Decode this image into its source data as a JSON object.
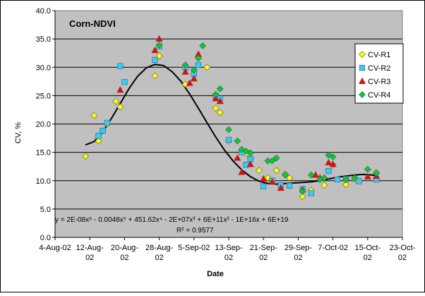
{
  "chart_data": {
    "type": "scatter",
    "title": "Corn-NDVI",
    "xlabel": "Date",
    "ylabel": "CV, %",
    "x_axis": {
      "type": "date",
      "min": "2002-08-04",
      "max": "2002-10-23",
      "tick_labels": [
        [
          "4-Aug-02"
        ],
        [
          "12-Aug-",
          "02"
        ],
        [
          "20-Aug-",
          "02"
        ],
        [
          "28-Aug-",
          "02"
        ],
        [
          "5-Sep-02"
        ],
        [
          "13-Sep-",
          "02"
        ],
        [
          "21-Sep-",
          "02"
        ],
        [
          "29-Sep-",
          "02"
        ],
        [
          "7-Oct-02"
        ],
        [
          "15-Oct-",
          "02"
        ],
        [
          "23-Oct-",
          "02"
        ]
      ],
      "tick_dates": [
        "2002-08-04",
        "2002-08-12",
        "2002-08-20",
        "2002-08-28",
        "2002-09-05",
        "2002-09-13",
        "2002-09-21",
        "2002-09-29",
        "2002-10-07",
        "2002-10-15",
        "2002-10-23"
      ]
    },
    "y_axis": {
      "min": 0,
      "max": 40,
      "tick_labels": [
        "0.0",
        "5.0",
        "10.0",
        "15.0",
        "20.0",
        "25.0",
        "30.0",
        "35.0",
        "40.0"
      ]
    },
    "grid": {
      "horizontal": true,
      "vertical": false
    },
    "legend_position": "right",
    "plot_background": "#c0c0c0",
    "series": [
      {
        "name": "CV-R1",
        "marker": "diamond",
        "color": "#ffff00",
        "points": [
          [
            "2002-08-11",
            14.3
          ],
          [
            "2002-08-13",
            21.5
          ],
          [
            "2002-08-14",
            17.0
          ],
          [
            "2002-08-15",
            18.8
          ],
          [
            "2002-08-16",
            20.0
          ],
          [
            "2002-08-18",
            24.0
          ],
          [
            "2002-08-19",
            23.0
          ],
          [
            "2002-08-27",
            28.5
          ],
          [
            "2002-08-28",
            32.0
          ],
          [
            "2002-09-03",
            27.0
          ],
          [
            "2002-09-05",
            29.5
          ],
          [
            "2002-09-08",
            30.0
          ],
          [
            "2002-09-10",
            22.8
          ],
          [
            "2002-09-11",
            22.0
          ],
          [
            "2002-09-13",
            17.0
          ],
          [
            "2002-09-16",
            15.2
          ],
          [
            "2002-09-17",
            14.8
          ],
          [
            "2002-09-18",
            14.0
          ],
          [
            "2002-09-20",
            11.8
          ],
          [
            "2002-09-22",
            10.5
          ],
          [
            "2002-09-24",
            11.8
          ],
          [
            "2002-09-26",
            11.2
          ],
          [
            "2002-09-27",
            10.5
          ],
          [
            "2002-09-30",
            7.2
          ],
          [
            "2002-10-02",
            8.3
          ],
          [
            "2002-10-05",
            9.2
          ],
          [
            "2002-10-07",
            12.8
          ],
          [
            "2002-10-10",
            9.3
          ],
          [
            "2002-10-12",
            10.3
          ],
          [
            "2002-10-17",
            11.5
          ]
        ]
      },
      {
        "name": "CV-R2",
        "marker": "square",
        "color": "#33ccff",
        "points": [
          [
            "2002-08-14",
            17.9
          ],
          [
            "2002-08-15",
            18.8
          ],
          [
            "2002-08-16",
            20.2
          ],
          [
            "2002-08-19",
            30.2
          ],
          [
            "2002-08-20",
            27.4
          ],
          [
            "2002-08-27",
            31.3
          ],
          [
            "2002-08-28",
            33.7
          ],
          [
            "2002-09-03",
            30.0
          ],
          [
            "2002-09-05",
            28.8
          ],
          [
            "2002-09-06",
            30.4
          ],
          [
            "2002-09-10",
            24.9
          ],
          [
            "2002-09-11",
            24.5
          ],
          [
            "2002-09-13",
            17.2
          ],
          [
            "2002-09-16",
            15.0
          ],
          [
            "2002-09-17",
            12.8
          ],
          [
            "2002-09-18",
            13.8
          ],
          [
            "2002-09-21",
            9.0
          ],
          [
            "2002-09-23",
            10.0
          ],
          [
            "2002-09-25",
            9.2
          ],
          [
            "2002-09-27",
            9.1
          ],
          [
            "2002-09-30",
            8.5
          ],
          [
            "2002-10-02",
            7.8
          ],
          [
            "2002-10-06",
            11.7
          ],
          [
            "2002-10-08",
            10.2
          ],
          [
            "2002-10-10",
            10.3
          ],
          [
            "2002-10-13",
            9.9
          ],
          [
            "2002-10-17",
            10.2
          ]
        ]
      },
      {
        "name": "CV-R3",
        "marker": "triangle",
        "color": "#ff0000",
        "points": [
          [
            "2002-08-19",
            26.0
          ],
          [
            "2002-08-27",
            33.0
          ],
          [
            "2002-08-28",
            35.0
          ],
          [
            "2002-09-03",
            29.2
          ],
          [
            "2002-09-04",
            27.2
          ],
          [
            "2002-09-05",
            28.0
          ],
          [
            "2002-09-06",
            32.3
          ],
          [
            "2002-09-10",
            24.5
          ],
          [
            "2002-09-11",
            24.0
          ],
          [
            "2002-09-15",
            14.0
          ],
          [
            "2002-09-16",
            11.5
          ],
          [
            "2002-09-18",
            12.9
          ],
          [
            "2002-09-21",
            10.3
          ],
          [
            "2002-09-23",
            9.8
          ],
          [
            "2002-09-25",
            8.7
          ],
          [
            "2002-09-30",
            8.4
          ],
          [
            "2002-10-03",
            11.0
          ],
          [
            "2002-10-04",
            10.5
          ],
          [
            "2002-10-06",
            13.2
          ],
          [
            "2002-10-07",
            12.9
          ],
          [
            "2002-10-15",
            10.7
          ],
          [
            "2002-10-17",
            10.8
          ]
        ]
      },
      {
        "name": "CV-R4",
        "marker": "diamond",
        "color": "#00cc33",
        "points": [
          [
            "2002-08-28",
            33.9
          ],
          [
            "2002-09-03",
            30.4
          ],
          [
            "2002-09-05",
            29.5
          ],
          [
            "2002-09-06",
            31.6
          ],
          [
            "2002-09-07",
            33.8
          ],
          [
            "2002-09-10",
            25.2
          ],
          [
            "2002-09-11",
            26.2
          ],
          [
            "2002-09-13",
            19.0
          ],
          [
            "2002-09-15",
            17.0
          ],
          [
            "2002-09-16",
            15.5
          ],
          [
            "2002-09-17",
            15.2
          ],
          [
            "2002-09-18",
            14.9
          ],
          [
            "2002-09-22",
            13.5
          ],
          [
            "2002-09-23",
            13.5
          ],
          [
            "2002-09-24",
            14.0
          ],
          [
            "2002-09-26",
            11.0
          ],
          [
            "2002-09-30",
            8.1
          ],
          [
            "2002-10-02",
            11.0
          ],
          [
            "2002-10-04",
            10.2
          ],
          [
            "2002-10-05",
            10.5
          ],
          [
            "2002-10-06",
            14.5
          ],
          [
            "2002-10-07",
            14.2
          ],
          [
            "2002-10-10",
            10.2
          ],
          [
            "2002-10-12",
            10.5
          ],
          [
            "2002-10-15",
            12.0
          ],
          [
            "2002-10-17",
            11.3
          ]
        ]
      }
    ],
    "trendline": {
      "type": "polynomial",
      "order": 6,
      "color": "#000000",
      "points": [
        [
          "2002-08-11",
          16.3
        ],
        [
          "2002-08-13",
          16.9
        ],
        [
          "2002-08-15",
          18.6
        ],
        [
          "2002-08-17",
          21.0
        ],
        [
          "2002-08-19",
          23.6
        ],
        [
          "2002-08-21",
          26.2
        ],
        [
          "2002-08-23",
          28.4
        ],
        [
          "2002-08-25",
          29.9
        ],
        [
          "2002-08-27",
          30.5
        ],
        [
          "2002-08-29",
          30.3
        ],
        [
          "2002-08-31",
          29.2
        ],
        [
          "2002-09-02",
          27.5
        ],
        [
          "2002-09-04",
          25.3
        ],
        [
          "2002-09-06",
          22.8
        ],
        [
          "2002-09-08",
          20.2
        ],
        [
          "2002-09-10",
          17.7
        ],
        [
          "2002-09-12",
          15.4
        ],
        [
          "2002-09-14",
          13.5
        ],
        [
          "2002-09-16",
          11.9
        ],
        [
          "2002-09-18",
          10.7
        ],
        [
          "2002-09-20",
          9.9
        ],
        [
          "2002-09-22",
          9.5
        ],
        [
          "2002-09-24",
          9.4
        ],
        [
          "2002-09-26",
          9.5
        ],
        [
          "2002-09-28",
          9.6
        ],
        [
          "2002-09-30",
          9.7
        ],
        [
          "2002-10-02",
          9.8
        ],
        [
          "2002-10-04",
          10.0
        ],
        [
          "2002-10-06",
          10.3
        ],
        [
          "2002-10-08",
          10.6
        ],
        [
          "2002-10-10",
          10.8
        ],
        [
          "2002-10-12",
          11.0
        ],
        [
          "2002-10-14",
          11.1
        ],
        [
          "2002-10-16",
          11.0
        ],
        [
          "2002-10-17",
          10.9
        ]
      ]
    },
    "annotations": [
      "y = 2E-08x⁶ - 0.0048x⁵ + 451.62x⁴ - 2E+07x³ + 6E+11x² - 1E+16x + 6E+19",
      "R² = 0.9577"
    ]
  }
}
